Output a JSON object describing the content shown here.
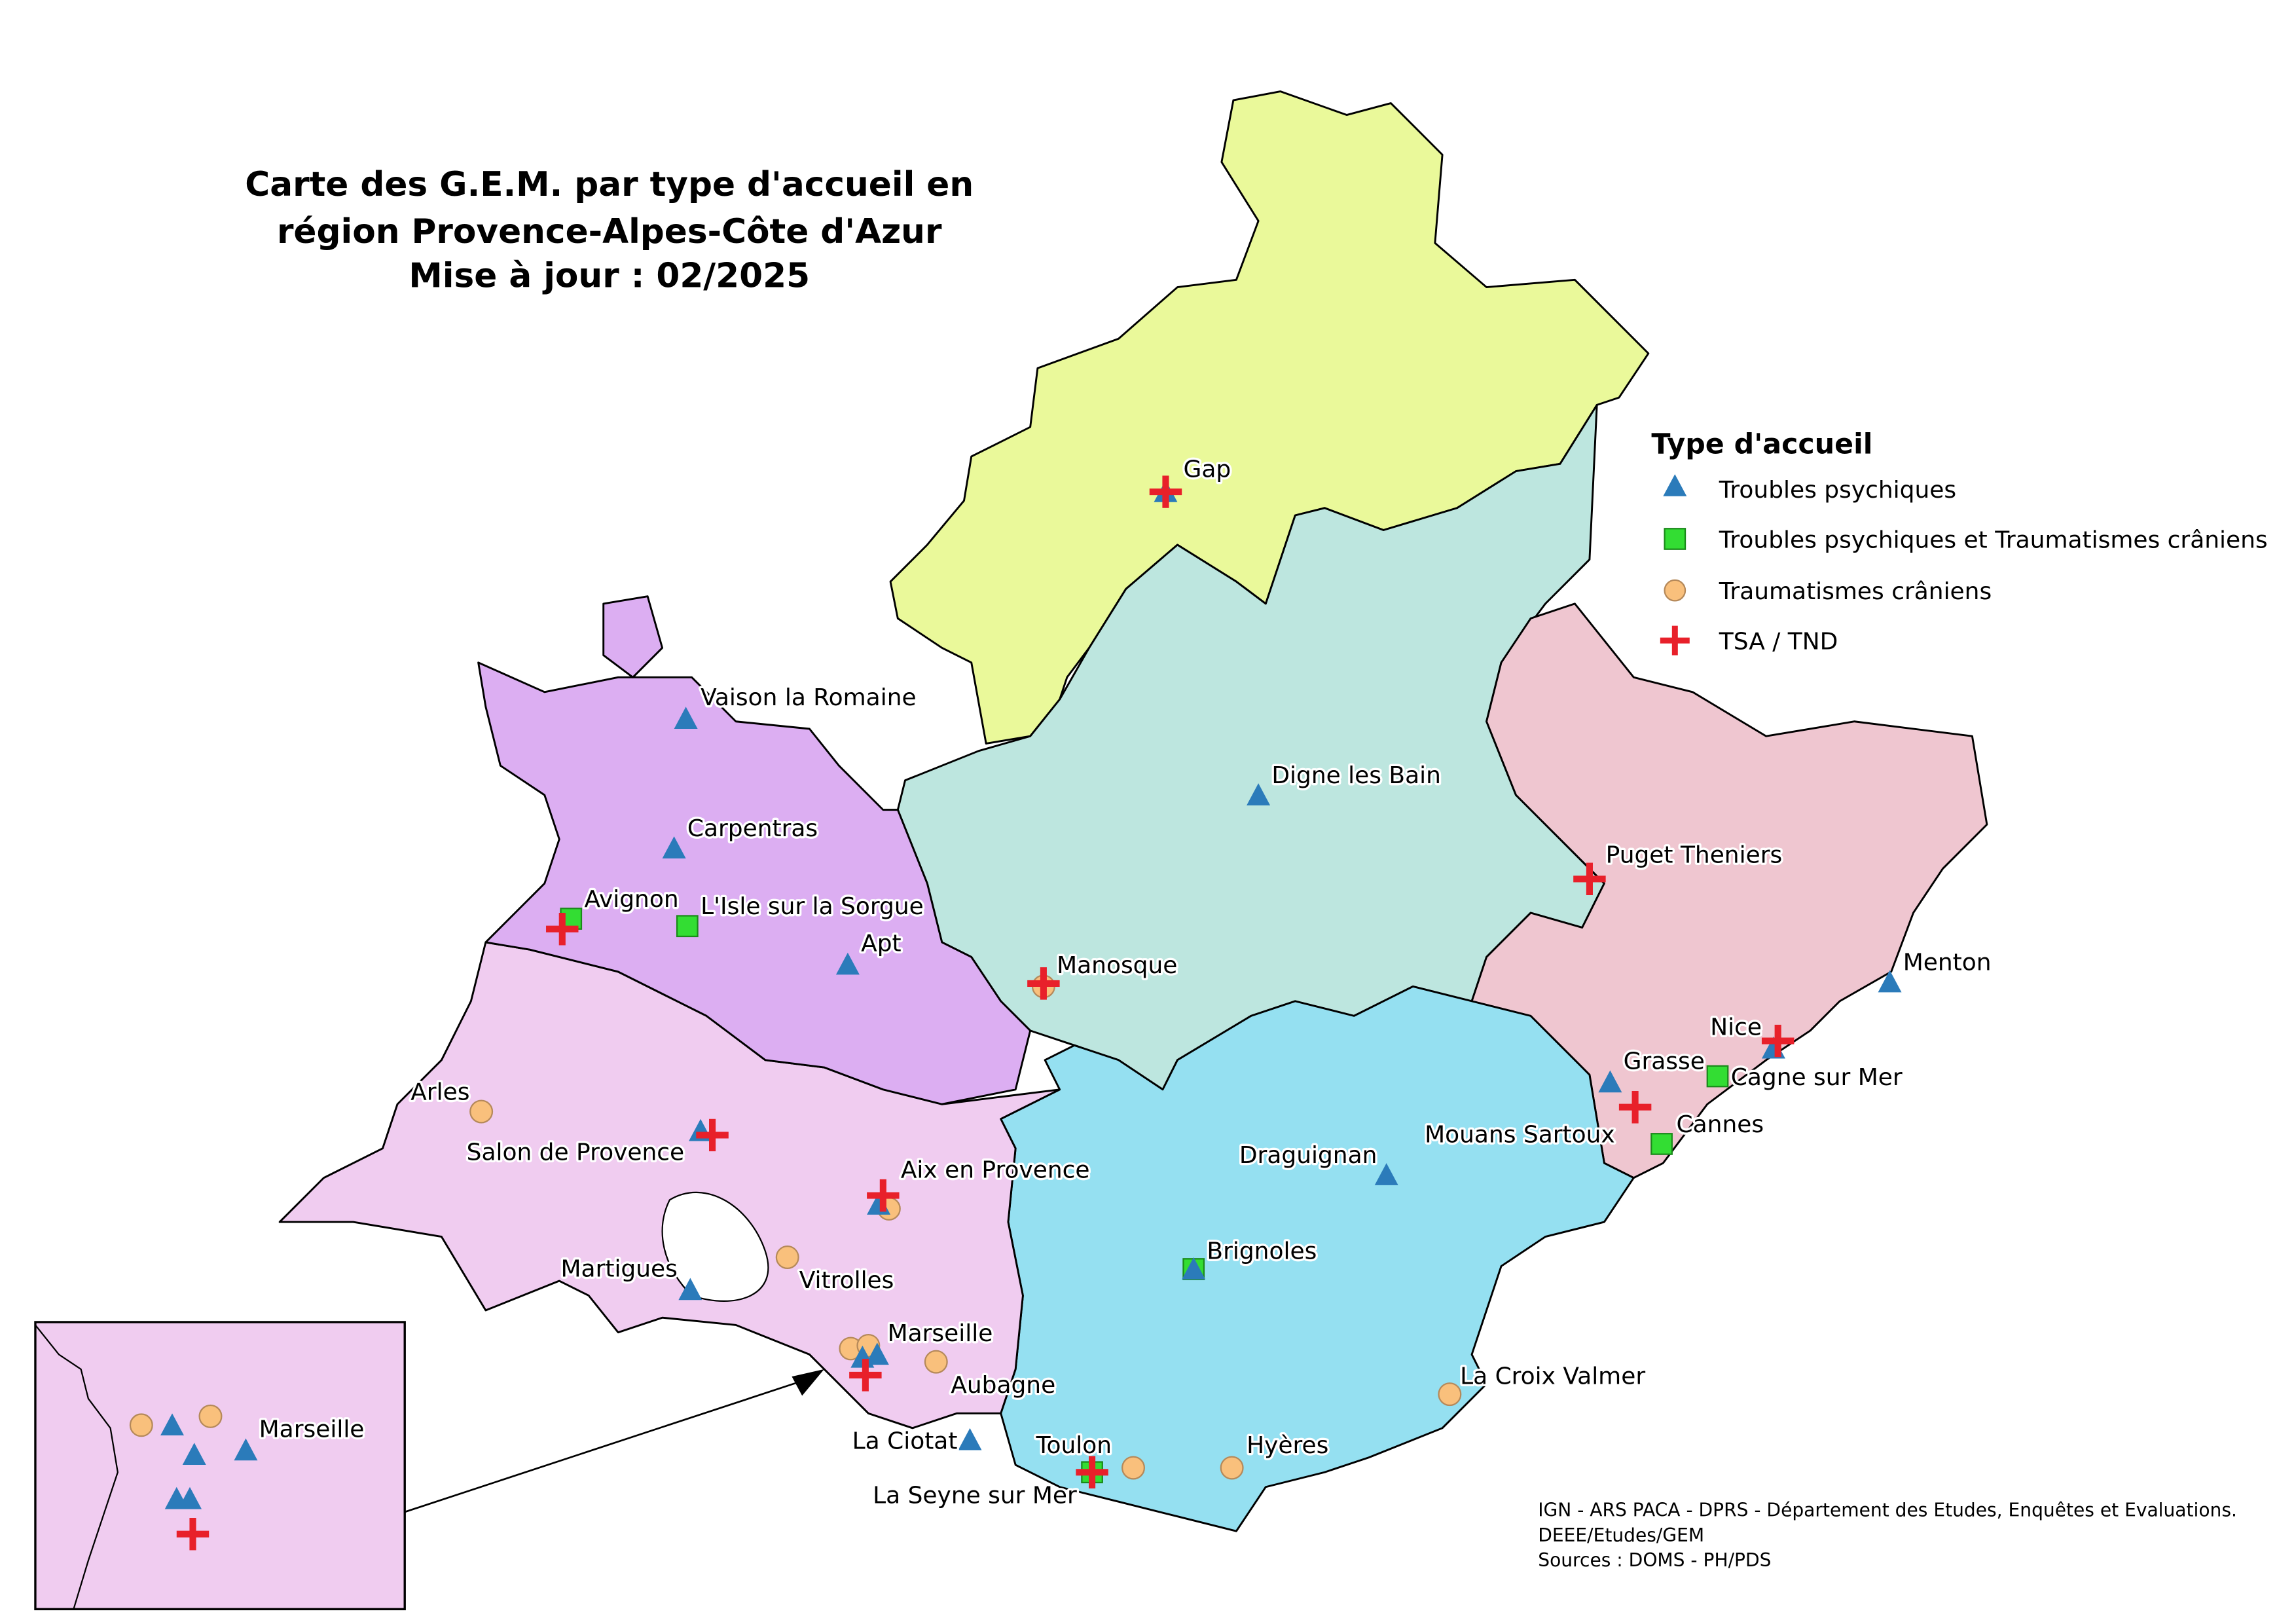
{
  "title": [
    "Carte des G.E.M. par type d'accueil en",
    "région Provence-Alpes-Côte d'Azur",
    "Mise à jour : 02/2025"
  ],
  "legend": {
    "title": "Type d'accueil",
    "items": [
      "Troubles psychiques",
      "Troubles psychiques et Traumatismes crâniens",
      "Traumatismes crâniens",
      "TSA / TND"
    ]
  },
  "places": [
    "Gap",
    "Vaison la Romaine",
    "Carpentras",
    "Avignon",
    "L'Isle sur la Sorgue",
    "Apt",
    "Digne les Bain",
    "Puget Theniers",
    "Manosque",
    "Menton",
    "Nice",
    "Grasse",
    "Cagne sur Mer",
    "Cannes",
    "Mouans Sartoux",
    "Arles",
    "Salon de Provence",
    "Draguignan",
    "Aix en Provence",
    "Vitrolles",
    "Martigues",
    "Brignoles",
    "Marseille",
    "Aubagne",
    "La Croix Valmer",
    "La Ciotat",
    "Toulon",
    "Hyères",
    "La Seyne sur Mer"
  ],
  "inset": {
    "places": [
      "Marseille"
    ]
  },
  "sources": [
    "IGN - ARS PACA - DPRS - Département des Etudes, Enquêtes et Evaluations.",
    "DEEE/Etudes/GEM",
    "Sources : DOMS - PH/PDS"
  ]
}
